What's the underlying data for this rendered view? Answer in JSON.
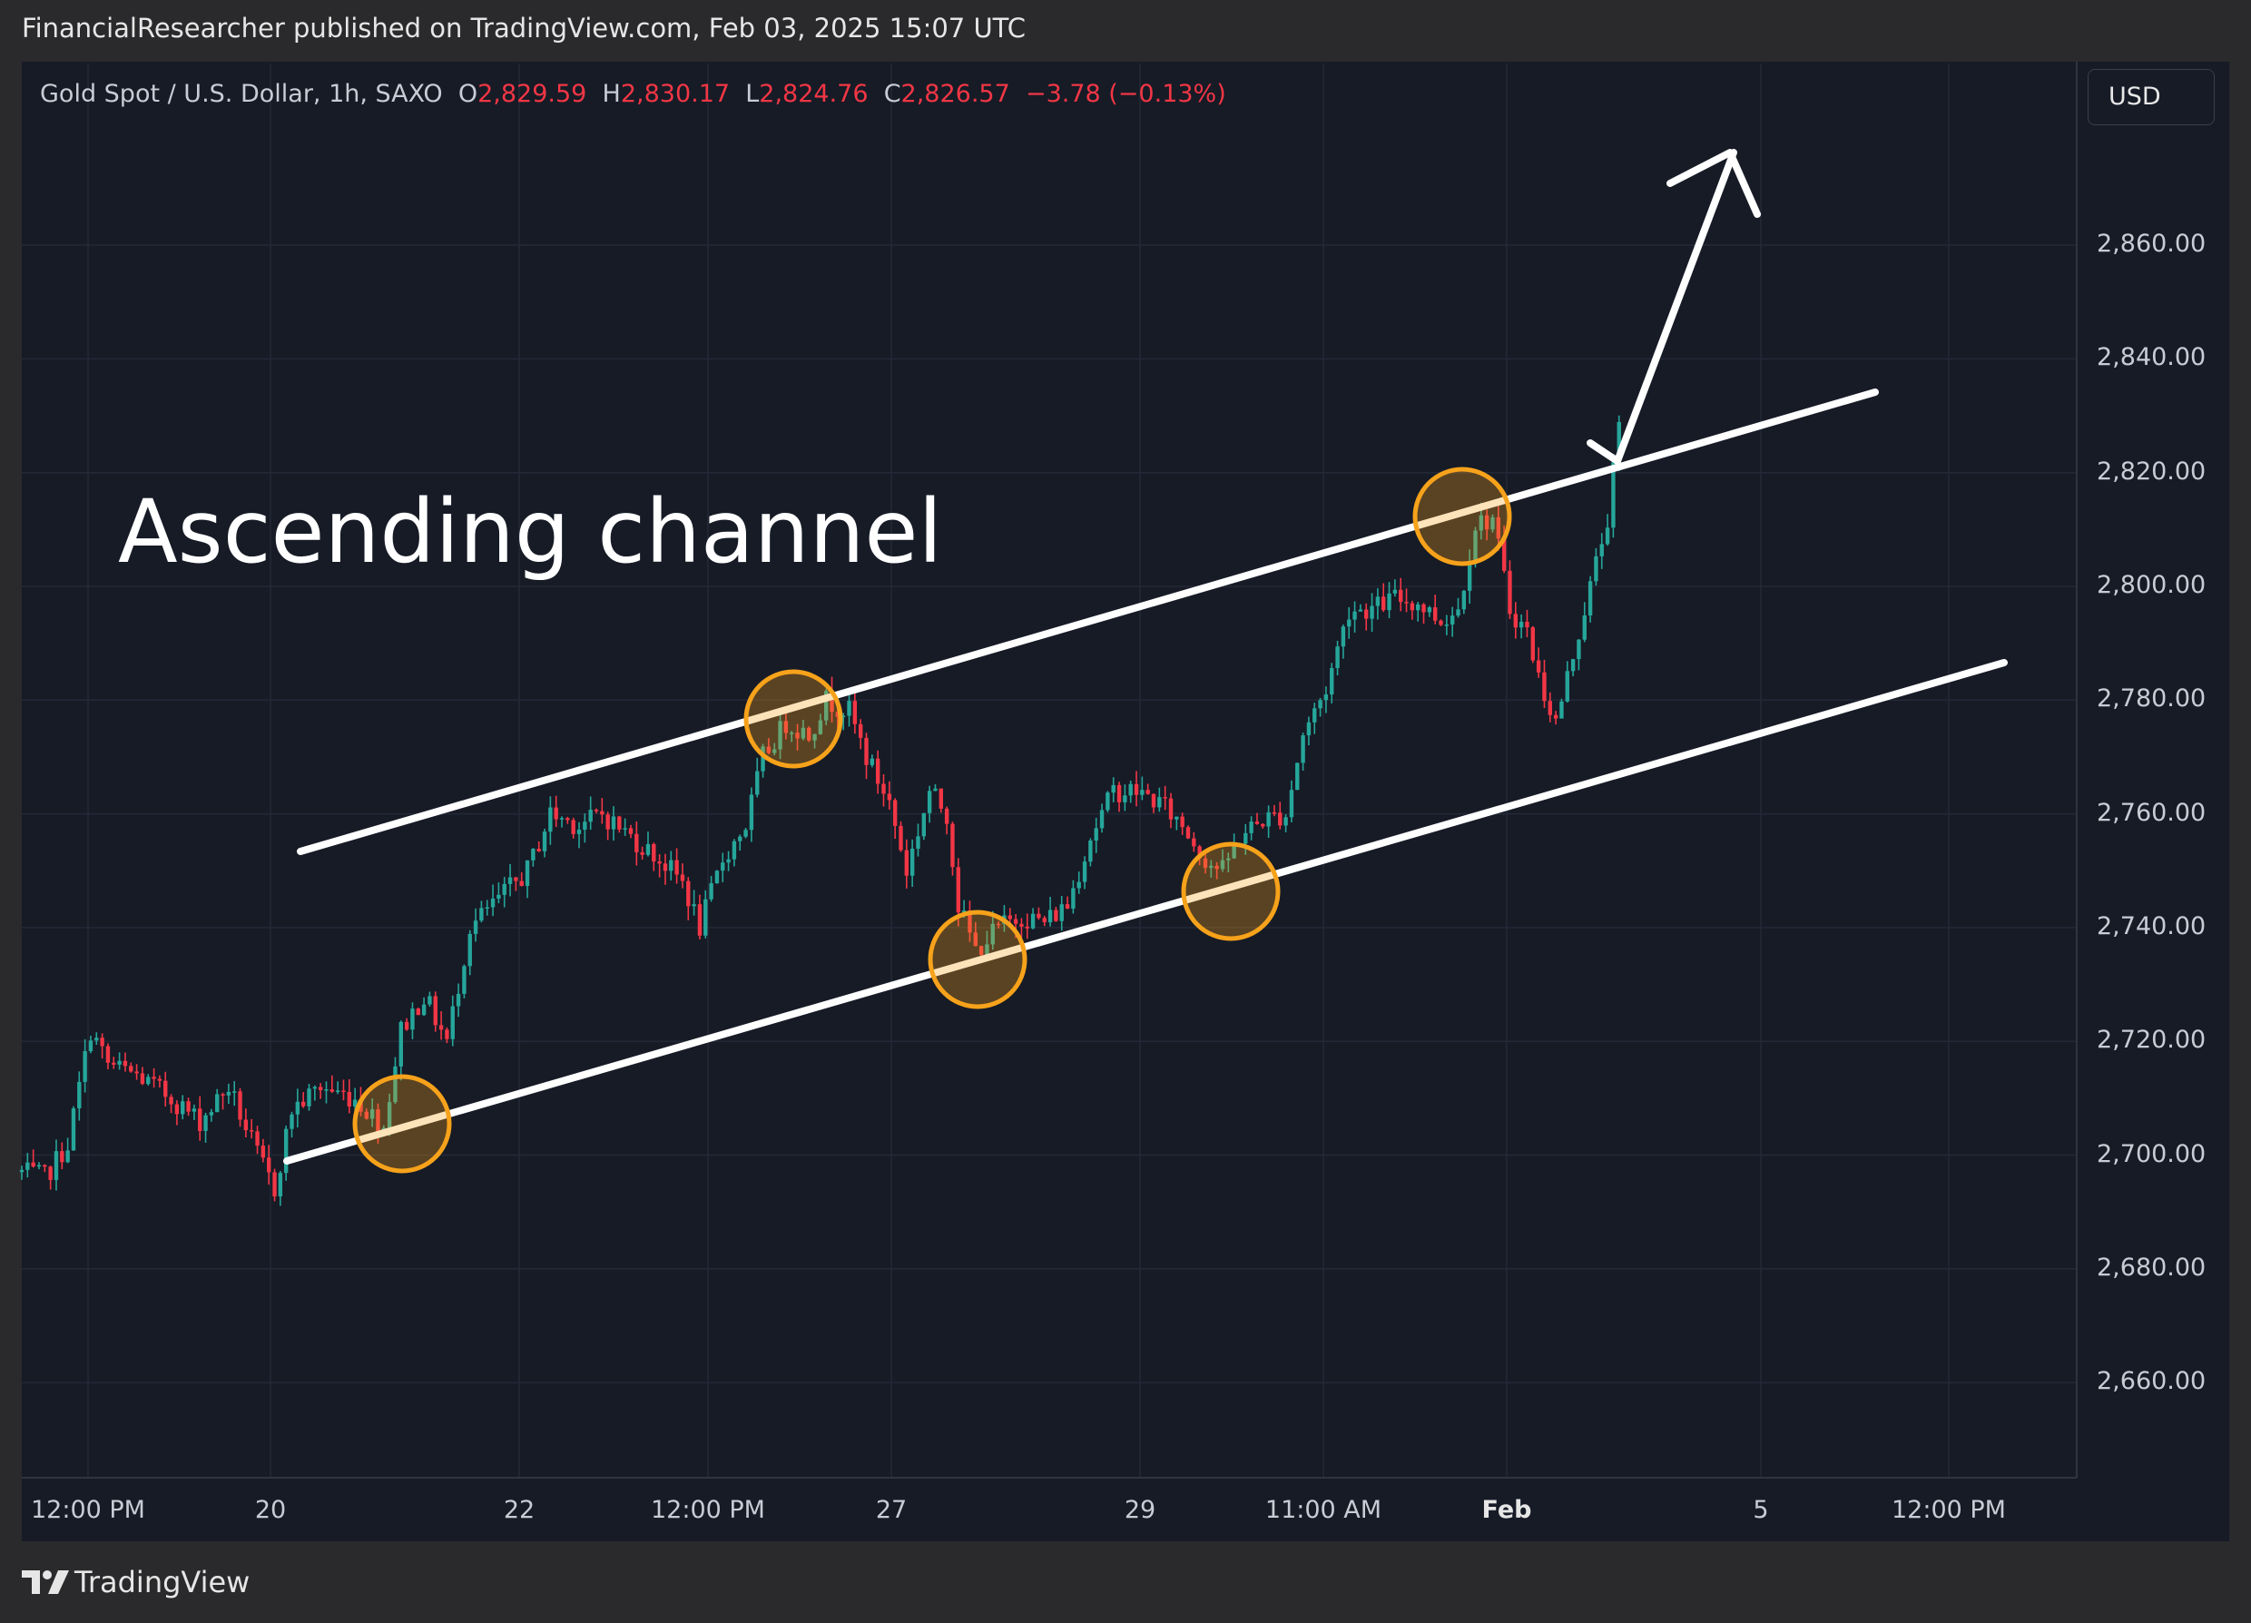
{
  "header": {
    "published_by": "FinancialResearcher published on TradingView.com, Feb 03, 2025 15:07 UTC"
  },
  "legend": {
    "symbol": "Gold Spot / U.S. Dollar, 1h, SAXO",
    "open_label": "O",
    "open": "2,829.59",
    "high_label": "H",
    "high": "2,830.17",
    "low_label": "L",
    "low": "2,824.76",
    "close_label": "C",
    "close": "2,826.57",
    "change": "−3.78 (−0.13%)"
  },
  "currency_button": "USD",
  "annotation": {
    "text": "Ascending channel"
  },
  "branding": {
    "name": "TradingView",
    "logo_icon": "tradingview-logo-icon"
  },
  "colors": {
    "up": "#26a69a",
    "down": "#f23645",
    "background": "#161b26",
    "channel": "#ffffff",
    "touch_circle": "#f7a21b"
  },
  "chart_data": {
    "type": "candlestick",
    "title": "",
    "symbol": "Gold Spot / U.S. Dollar",
    "interval": "1h",
    "ylim": [
      2645,
      2873
    ],
    "y_ticks": [
      "2,660.00",
      "2,680.00",
      "2,700.00",
      "2,720.00",
      "2,740.00",
      "2,760.00",
      "2,780.00",
      "2,800.00",
      "2,820.00",
      "2,840.00",
      "2,860.00"
    ],
    "x_ticks": [
      "12:00 PM",
      "20",
      "22",
      "12:00 PM",
      "27",
      "29",
      "11:00 AM",
      "Feb",
      "5",
      "12:00 PM"
    ],
    "grid": true,
    "price_path": [
      {
        "x": 0,
        "y": 2697
      },
      {
        "x": 4,
        "y": 2696
      },
      {
        "x": 8,
        "y": 2702
      },
      {
        "x": 12,
        "y": 2722
      },
      {
        "x": 15,
        "y": 2716
      },
      {
        "x": 20,
        "y": 2714
      },
      {
        "x": 26,
        "y": 2710
      },
      {
        "x": 31,
        "y": 2706
      },
      {
        "x": 36,
        "y": 2712
      },
      {
        "x": 41,
        "y": 2700
      },
      {
        "x": 44,
        "y": 2694
      },
      {
        "x": 47,
        "y": 2708
      },
      {
        "x": 52,
        "y": 2712
      },
      {
        "x": 58,
        "y": 2710
      },
      {
        "x": 63,
        "y": 2705
      },
      {
        "x": 66,
        "y": 2722
      },
      {
        "x": 70,
        "y": 2728
      },
      {
        "x": 74,
        "y": 2720
      },
      {
        "x": 78,
        "y": 2740
      },
      {
        "x": 83,
        "y": 2745
      },
      {
        "x": 88,
        "y": 2750
      },
      {
        "x": 92,
        "y": 2760
      },
      {
        "x": 97,
        "y": 2758
      },
      {
        "x": 101,
        "y": 2760
      },
      {
        "x": 106,
        "y": 2756
      },
      {
        "x": 111,
        "y": 2752
      },
      {
        "x": 115,
        "y": 2748
      },
      {
        "x": 118,
        "y": 2740
      },
      {
        "x": 122,
        "y": 2752
      },
      {
        "x": 126,
        "y": 2758
      },
      {
        "x": 129,
        "y": 2770
      },
      {
        "x": 133,
        "y": 2776
      },
      {
        "x": 137,
        "y": 2774
      },
      {
        "x": 140,
        "y": 2780
      },
      {
        "x": 144,
        "y": 2778
      },
      {
        "x": 147,
        "y": 2770
      },
      {
        "x": 151,
        "y": 2762
      },
      {
        "x": 154,
        "y": 2750
      },
      {
        "x": 158,
        "y": 2764
      },
      {
        "x": 161,
        "y": 2760
      },
      {
        "x": 163,
        "y": 2744
      },
      {
        "x": 166,
        "y": 2736
      },
      {
        "x": 170,
        "y": 2740
      },
      {
        "x": 174,
        "y": 2742
      },
      {
        "x": 178,
        "y": 2741
      },
      {
        "x": 182,
        "y": 2744
      },
      {
        "x": 186,
        "y": 2756
      },
      {
        "x": 190,
        "y": 2764
      },
      {
        "x": 194,
        "y": 2764
      },
      {
        "x": 198,
        "y": 2762
      },
      {
        "x": 202,
        "y": 2758
      },
      {
        "x": 206,
        "y": 2752
      },
      {
        "x": 209,
        "y": 2750
      },
      {
        "x": 212,
        "y": 2756
      },
      {
        "x": 216,
        "y": 2759
      },
      {
        "x": 220,
        "y": 2760
      },
      {
        "x": 223,
        "y": 2774
      },
      {
        "x": 227,
        "y": 2782
      },
      {
        "x": 231,
        "y": 2796
      },
      {
        "x": 235,
        "y": 2796
      },
      {
        "x": 239,
        "y": 2798
      },
      {
        "x": 243,
        "y": 2797
      },
      {
        "x": 247,
        "y": 2794
      },
      {
        "x": 250,
        "y": 2796
      },
      {
        "x": 253,
        "y": 2811
      },
      {
        "x": 256,
        "y": 2812
      },
      {
        "x": 259,
        "y": 2796
      },
      {
        "x": 262,
        "y": 2792
      },
      {
        "x": 264,
        "y": 2784
      },
      {
        "x": 267,
        "y": 2776
      },
      {
        "x": 270,
        "y": 2788
      },
      {
        "x": 273,
        "y": 2800
      },
      {
        "x": 276,
        "y": 2812
      },
      {
        "x": 278,
        "y": 2828
      }
    ],
    "channel_upper": {
      "x": [
        40,
        278
      ],
      "y": [
        2754,
        2820
      ]
    },
    "channel_lower": {
      "x": [
        40,
        278
      ],
      "y": [
        2699,
        2765
      ]
    },
    "touch_points": [
      {
        "x": 62,
        "y": 2706
      },
      {
        "x": 127,
        "y": 2776
      },
      {
        "x": 157,
        "y": 2734
      },
      {
        "x": 199,
        "y": 2746
      },
      {
        "x": 236,
        "y": 2811
      }
    ]
  }
}
